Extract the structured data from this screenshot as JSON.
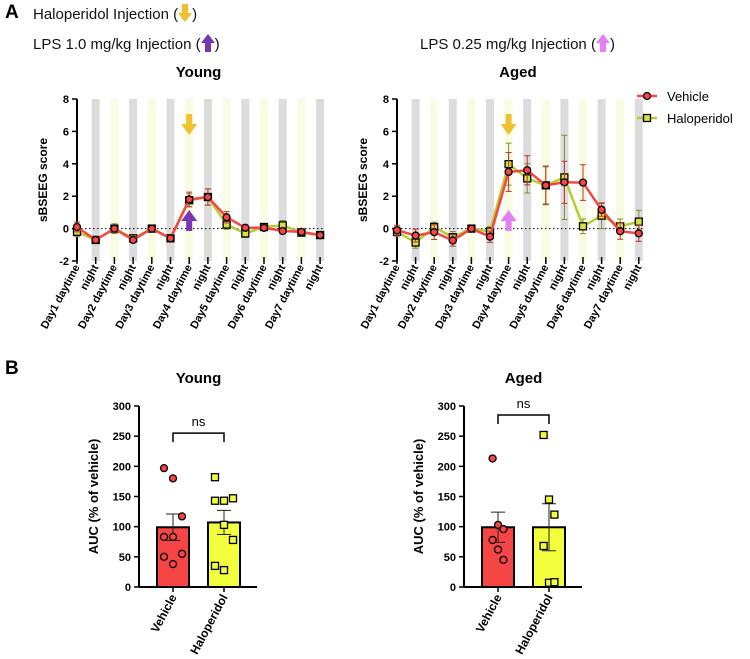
{
  "panels": {
    "a": "A",
    "b": "B"
  },
  "annotations": {
    "haloperidol": {
      "label": "Haloperidol Injection",
      "color": "#f0c030",
      "arrow": "down"
    },
    "lps_young": {
      "label": "LPS 1.0 mg/kg Injection",
      "color": "#7b35b3",
      "arrow": "up"
    },
    "lps_aged": {
      "label": "LPS 0.25 mg/kg Injection",
      "color": "#e87ef5",
      "arrow": "up"
    }
  },
  "legend": {
    "vehicle": "Vehicle",
    "haloperidol": "Haloperidol"
  },
  "colors": {
    "vehicle": "#f54545",
    "haloperidol_line": "#b8cc2e",
    "haloperidol_marker": "#d8e040",
    "haloperidol_bar": "#f3ff3c",
    "night": "#dcdcdc",
    "day": "#f8fce0"
  },
  "chart_data": [
    {
      "type": "line",
      "title": "Young",
      "ylabel": "sBSEEG score",
      "xlabel": "",
      "ylim": [
        -2,
        8
      ],
      "yticks": [
        -2,
        0,
        2,
        4,
        6,
        8
      ],
      "categories": [
        "Day1 daytime",
        "night",
        "Day2 daytime",
        "night",
        "Day3 daytime",
        "night",
        "Day4 daytime",
        "night",
        "Day5 daytime",
        "night",
        "Day6 daytime",
        "night",
        "Day7 daytime",
        "night"
      ],
      "haloperidol_injection_index": 6,
      "lps_injection_index": 6,
      "series": [
        {
          "name": "Vehicle",
          "values": [
            0.1,
            -0.7,
            0.0,
            -0.7,
            0.0,
            -0.6,
            1.8,
            1.95,
            0.7,
            0.05,
            0.05,
            -0.15,
            -0.2,
            -0.4
          ],
          "sem": [
            0.3,
            0.1,
            0.15,
            0.1,
            0.05,
            0.1,
            0.45,
            0.5,
            0.35,
            0.15,
            0.1,
            0.15,
            0.15,
            0.15
          ]
        },
        {
          "name": "Haloperidol",
          "values": [
            -0.2,
            -0.7,
            0.0,
            -0.6,
            0.0,
            -0.6,
            1.75,
            1.95,
            0.25,
            -0.3,
            0.1,
            0.2,
            -0.25,
            -0.4
          ],
          "sem": [
            0.3,
            0.1,
            0.3,
            0.15,
            0.05,
            0.1,
            0.4,
            0.5,
            0.3,
            0.25,
            0.15,
            0.3,
            0.2,
            0.15
          ]
        }
      ]
    },
    {
      "type": "line",
      "title": "Aged",
      "ylabel": "sBSEEG score",
      "xlabel": "",
      "ylim": [
        -2,
        8
      ],
      "yticks": [
        -2,
        0,
        2,
        4,
        6,
        8
      ],
      "categories": [
        "Day1 daytime",
        "night",
        "Day2 daytime",
        "night",
        "Day3 daytime",
        "night",
        "Day4 daytime",
        "night",
        "Day5 daytime",
        "night",
        "Day6 daytime",
        "night",
        "Day7 daytime",
        "night"
      ],
      "haloperidol_injection_index": 6,
      "lps_injection_index": 6,
      "series": [
        {
          "name": "Vehicle",
          "values": [
            -0.1,
            -0.43,
            -0.22,
            -0.73,
            0.0,
            -0.5,
            3.5,
            3.6,
            2.67,
            2.86,
            2.84,
            1.16,
            -0.16,
            -0.29
          ],
          "sem": [
            0.3,
            0.4,
            0.45,
            0.35,
            0.1,
            0.35,
            1.2,
            0.9,
            1.15,
            1.3,
            1.1,
            0.4,
            0.5,
            0.5
          ]
        },
        {
          "name": "Haloperidol",
          "values": [
            -0.2,
            -0.86,
            0.1,
            -0.53,
            0.0,
            -0.18,
            3.98,
            3.1,
            2.67,
            3.16,
            0.14,
            0.8,
            0.14,
            0.43
          ],
          "sem": [
            0.3,
            0.35,
            0.3,
            0.35,
            0.1,
            0.3,
            1.3,
            0.9,
            1.2,
            2.6,
            0.45,
            0.8,
            0.45,
            0.7
          ]
        }
      ]
    },
    {
      "type": "bar",
      "title": "Young",
      "ylabel": "AUC (% of vehicle)",
      "xlabel": "",
      "ylim": [
        0,
        300
      ],
      "yticks": [
        0,
        50,
        100,
        150,
        200,
        250,
        300
      ],
      "categories": [
        "Vehicle",
        "Haloperidol"
      ],
      "significance": "ns",
      "values": [
        99,
        107
      ],
      "sem": [
        22,
        20
      ],
      "points": [
        [
          197,
          180,
          117,
          83,
          83,
          55,
          50,
          38
        ],
        [
          182,
          143,
          147,
          143,
          103,
          78,
          35,
          28
        ]
      ]
    },
    {
      "type": "bar",
      "title": "Aged",
      "ylabel": "AUC (% of vehicle)",
      "xlabel": "",
      "ylim": [
        0,
        300
      ],
      "yticks": [
        0,
        50,
        100,
        150,
        200,
        250,
        300
      ],
      "categories": [
        "Vehicle",
        "Haloperidol"
      ],
      "significance": "ns",
      "values": [
        99,
        99
      ],
      "sem": [
        25,
        39
      ],
      "points": [
        [
          213,
          103,
          96,
          78,
          62,
          45
        ],
        [
          252,
          145,
          120,
          68,
          7,
          8
        ]
      ]
    }
  ]
}
